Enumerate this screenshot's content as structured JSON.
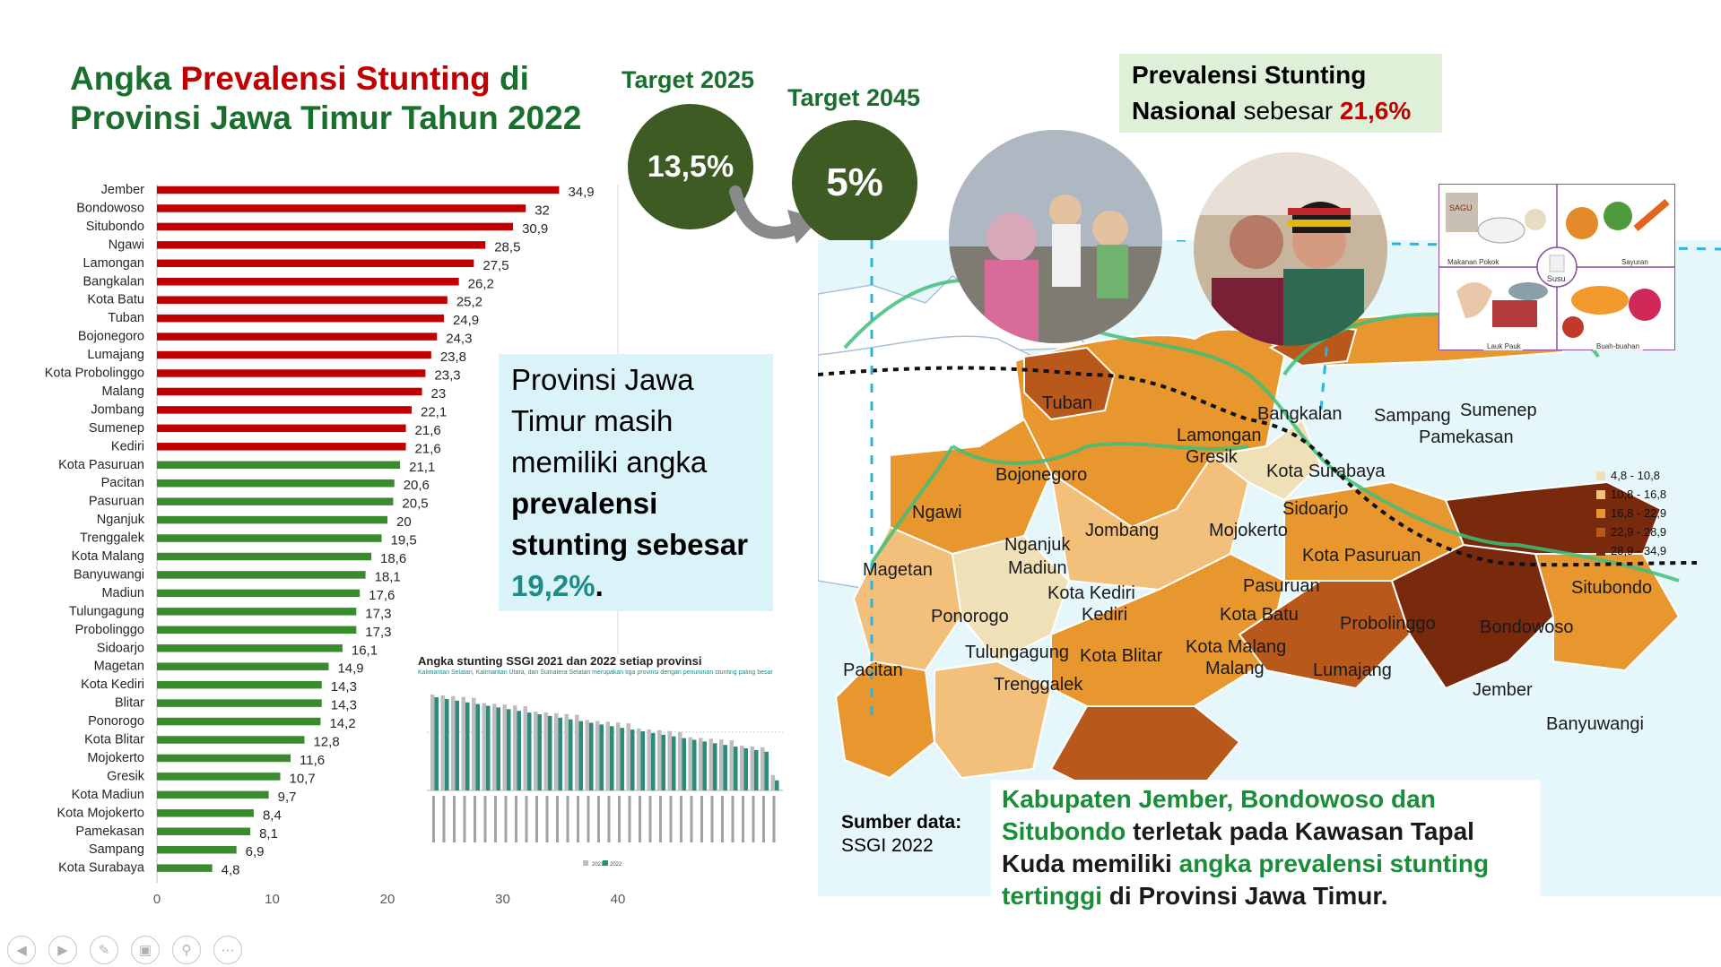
{
  "title": {
    "line1_a": "Angka ",
    "line1_red": "Prevalensi Stunting",
    "line1_b": " di",
    "line2": "Provinsi Jawa Timur Tahun 2022"
  },
  "targets": {
    "t2025_label": "Target 2025",
    "t2025_value": "13,5%",
    "t2045_label": "Target 2045",
    "t2045_value": "5%"
  },
  "national": {
    "line1": "Prevalensi Stunting",
    "line2_bold": "Nasional",
    "line2_norm": " sebesar ",
    "value": "21,6%"
  },
  "info": {
    "text1": "Provinsi Jawa Timur masih memiliki angka ",
    "bold": "prevalensi stunting sebesar",
    "value": "19,2%",
    "end": "."
  },
  "source": {
    "label": "Sumber data:",
    "value": "SSGI 2022"
  },
  "kabupaten_note": {
    "g1": "Kabupaten Jember, Bondowoso dan Situbondo",
    "t1": " terletak pada Kawasan Tapal Kuda memiliki ",
    "g2": "angka prevalensi stunting tertinggi",
    "t2": " di Provinsi Jawa Timur."
  },
  "map": {
    "legend": [
      "4,8 - 10,8",
      "10,8 - 16,8",
      "16,8 - 22,9",
      "22,9 - 28,9",
      "28,9 - 34,9"
    ],
    "legend_colors": [
      "#f0e0b8",
      "#f2c07a",
      "#e8962e",
      "#b8581a",
      "#7a2a0c"
    ],
    "labels": [
      {
        "t": "Tuban"
      },
      {
        "t": "Lamongan"
      },
      {
        "t": "Gresik"
      },
      {
        "t": "Bangkalan"
      },
      {
        "t": "Sampang"
      },
      {
        "t": "Sumenep"
      },
      {
        "t": "Pamekasan"
      },
      {
        "t": "Kota Surabaya"
      },
      {
        "t": "Bojonegoro"
      },
      {
        "t": "Ngawi"
      },
      {
        "t": "Sidoarjo"
      },
      {
        "t": "Jombang"
      },
      {
        "t": "Mojokerto"
      },
      {
        "t": "Nganjuk"
      },
      {
        "t": "Madiun"
      },
      {
        "t": "Magetan"
      },
      {
        "t": "Kota Pasuruan"
      },
      {
        "t": "Situbondo"
      },
      {
        "t": "Kota Kediri"
      },
      {
        "t": "Kediri"
      },
      {
        "t": "Pasuruan"
      },
      {
        "t": "Ponorogo"
      },
      {
        "t": "Kota Batu"
      },
      {
        "t": "Probolinggo"
      },
      {
        "t": "Bondowoso"
      },
      {
        "t": "Kota Malang"
      },
      {
        "t": "Tulungagung"
      },
      {
        "t": "Kota Blitar"
      },
      {
        "t": "Malang"
      },
      {
        "t": "Pacitan"
      },
      {
        "t": "Lumajang"
      },
      {
        "t": "Jember"
      },
      {
        "t": "Trenggalek"
      },
      {
        "t": "Banyuwangi"
      }
    ]
  },
  "food_groups": [
    "Makanan Pokok",
    "Sayuran",
    "Susu",
    "Lauk Pauk",
    "Buah-buahan"
  ],
  "food_extra": "SAGU",
  "mini_chart": {
    "title": "Angka stunting SSGI 2021 dan 2022 setiap provinsi",
    "subtitle": "Kalimantan Selatan, Kalimantan Utara, dan Sumatera Selatan merupakan tiga provinsi dengan penurunan stunting paling besar",
    "legend": [
      "2021",
      "2022"
    ]
  },
  "nav_icons": [
    "prev-icon",
    "next-icon",
    "pen-icon",
    "slides-icon",
    "zoom-icon",
    "more-icon"
  ],
  "chart_data": {
    "type": "bar",
    "orientation": "horizontal",
    "categories": [
      "Jember",
      "Bondowoso",
      "Situbondo",
      "Ngawi",
      "Lamongan",
      "Bangkalan",
      "Kota Batu",
      "Tuban",
      "Bojonegoro",
      "Lumajang",
      "Kota Probolinggo",
      "Malang",
      "Jombang",
      "Sumenep",
      "Kediri",
      "Kota Pasuruan",
      "Pacitan",
      "Pasuruan",
      "Nganjuk",
      "Trenggalek",
      "Kota Malang",
      "Banyuwangi",
      "Madiun",
      "Tulungagung",
      "Probolinggo",
      "Sidoarjo",
      "Magetan",
      "Kota Kediri",
      "Blitar",
      "Ponorogo",
      "Kota Blitar",
      "Mojokerto",
      "Gresik",
      "Kota Madiun",
      "Kota Mojokerto",
      "Pamekasan",
      "Sampang",
      "Kota Surabaya"
    ],
    "values": [
      34.9,
      32,
      30.9,
      28.5,
      27.5,
      26.2,
      25.2,
      24.9,
      24.3,
      23.8,
      23.3,
      23,
      22.1,
      21.6,
      21.6,
      21.1,
      20.6,
      20.5,
      20,
      19.5,
      18.6,
      18.1,
      17.6,
      17.3,
      17.3,
      16.1,
      14.9,
      14.3,
      14.3,
      14.2,
      12.8,
      11.6,
      10.7,
      9.7,
      8.4,
      8.1,
      6.9,
      4.8
    ],
    "value_labels": [
      "34,9",
      "32",
      "30,9",
      "28,5",
      "27,5",
      "26,2",
      "25,2",
      "24,9",
      "24,3",
      "23,8",
      "23,3",
      "23",
      "22,1",
      "21,6",
      "21,6",
      "21,1",
      "20,6",
      "20,5",
      "20",
      "19,5",
      "18,6",
      "18,1",
      "17,6",
      "17,3",
      "17,3",
      "16,1",
      "14,9",
      "14,3",
      "14,3",
      "14,2",
      "12,8",
      "11,6",
      "10,7",
      "9,7",
      "8,4",
      "8,1",
      "6,9",
      "4,8"
    ],
    "xticks": [
      "0",
      "10",
      "20",
      "30",
      "40"
    ],
    "xlim": [
      0,
      40
    ],
    "color_above": "#c00000",
    "color_below": "#3a8a2e",
    "red_count": 15
  }
}
